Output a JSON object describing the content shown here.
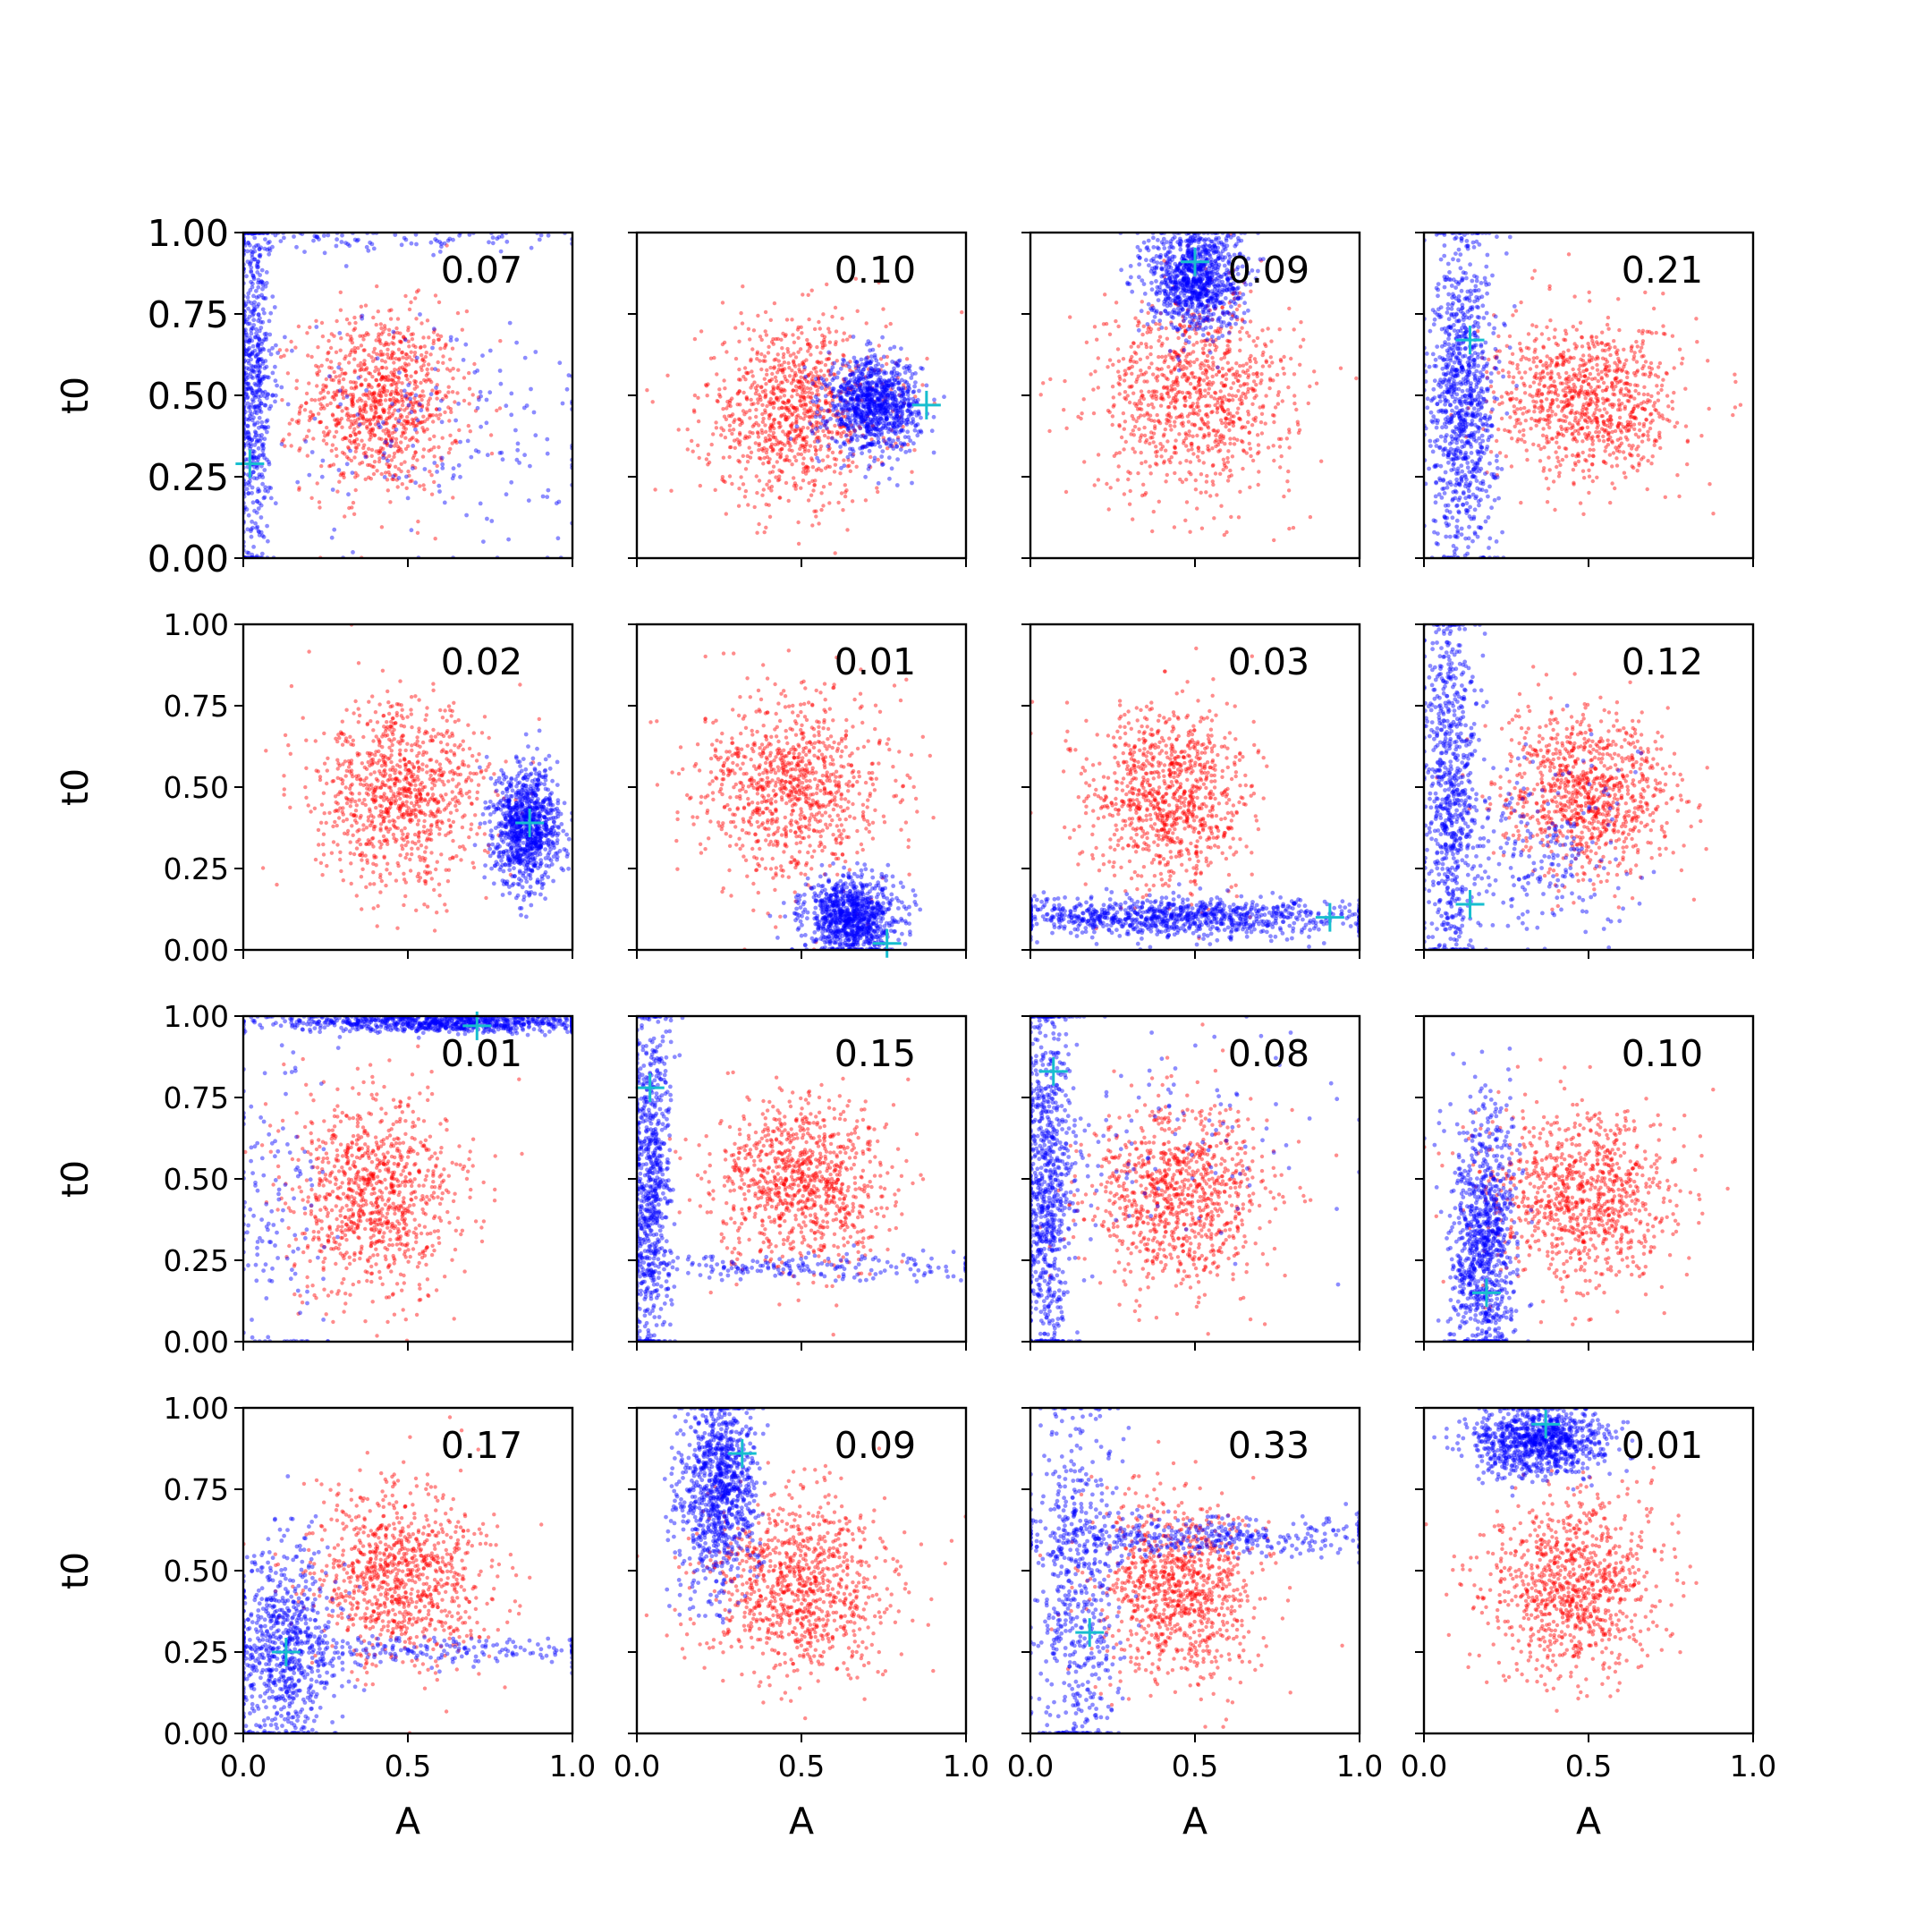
{
  "figure": {
    "rows": 4,
    "cols": 4,
    "colors": {
      "prior": "#ff0000",
      "posterior": "#0000ff",
      "true_value": "#17becf",
      "axes": "#000000"
    },
    "x_axis": {
      "label": "A",
      "range": [
        0,
        1
      ],
      "ticks": [
        0.0,
        0.5,
        1.0
      ],
      "tick_labels": [
        "0.0",
        "0.5",
        "1.0"
      ]
    },
    "y_axis": {
      "label": "t0",
      "range": [
        0,
        1
      ],
      "ticks": [
        0.0,
        0.25,
        0.5,
        0.75,
        1.0
      ],
      "tick_labels": [
        "0.00",
        "0.25",
        "0.50",
        "0.75",
        "1.00"
      ]
    }
  },
  "chart_data": [
    {
      "type": "scatter",
      "annotation": "0.07",
      "true_value": {
        "x": 0.02,
        "y": 0.29
      },
      "prior": {
        "center": [
          0.42,
          0.48
        ],
        "spread": [
          0.12,
          0.14
        ]
      },
      "posterior": [
        {
          "center": [
            0.03,
            0.55
          ],
          "spread": [
            0.03,
            0.3
          ],
          "weight": 0.7
        },
        {
          "center": [
            0.4,
            0.98
          ],
          "spread": [
            0.3,
            0.02
          ],
          "weight": 0.1
        },
        {
          "center": [
            0.6,
            0.4
          ],
          "spread": [
            0.25,
            0.2
          ],
          "weight": 0.2
        }
      ]
    },
    {
      "type": "scatter",
      "annotation": "0.10",
      "true_value": {
        "x": 0.88,
        "y": 0.47
      },
      "prior": {
        "center": [
          0.48,
          0.45
        ],
        "spread": [
          0.14,
          0.14
        ]
      },
      "posterior": [
        {
          "center": [
            0.72,
            0.47
          ],
          "spread": [
            0.07,
            0.07
          ],
          "weight": 1.0
        }
      ]
    },
    {
      "type": "scatter",
      "annotation": "0.09",
      "true_value": {
        "x": 0.5,
        "y": 0.91
      },
      "prior": {
        "center": [
          0.5,
          0.5
        ],
        "spread": [
          0.15,
          0.15
        ]
      },
      "posterior": [
        {
          "center": [
            0.5,
            0.86
          ],
          "spread": [
            0.07,
            0.08
          ],
          "weight": 1.0
        }
      ]
    },
    {
      "type": "scatter",
      "annotation": "0.21",
      "true_value": {
        "x": 0.14,
        "y": 0.67
      },
      "prior": {
        "center": [
          0.5,
          0.48
        ],
        "spread": [
          0.14,
          0.12
        ]
      },
      "posterior": [
        {
          "center": [
            0.12,
            0.5
          ],
          "spread": [
            0.05,
            0.25
          ],
          "weight": 1.0
        }
      ]
    },
    {
      "type": "scatter",
      "annotation": "0.02",
      "true_value": {
        "x": 0.87,
        "y": 0.39
      },
      "prior": {
        "center": [
          0.48,
          0.47
        ],
        "spread": [
          0.13,
          0.14
        ]
      },
      "posterior": [
        {
          "center": [
            0.86,
            0.38
          ],
          "spread": [
            0.05,
            0.09
          ],
          "weight": 1.0
        }
      ]
    },
    {
      "type": "scatter",
      "annotation": "0.01",
      "true_value": {
        "x": 0.76,
        "y": 0.02
      },
      "prior": {
        "center": [
          0.48,
          0.5
        ],
        "spread": [
          0.14,
          0.14
        ]
      },
      "posterior": [
        {
          "center": [
            0.65,
            0.1
          ],
          "spread": [
            0.07,
            0.06
          ],
          "weight": 1.0
        }
      ]
    },
    {
      "type": "scatter",
      "annotation": "0.03",
      "true_value": {
        "x": 0.91,
        "y": 0.1
      },
      "prior": {
        "center": [
          0.42,
          0.47
        ],
        "spread": [
          0.12,
          0.14
        ]
      },
      "posterior": [
        {
          "center": [
            0.45,
            0.1
          ],
          "spread": [
            0.3,
            0.03
          ],
          "weight": 1.0
        }
      ]
    },
    {
      "type": "scatter",
      "annotation": "0.12",
      "true_value": {
        "x": 0.14,
        "y": 0.14
      },
      "prior": {
        "center": [
          0.5,
          0.48
        ],
        "spread": [
          0.13,
          0.12
        ]
      },
      "posterior": [
        {
          "center": [
            0.08,
            0.5
          ],
          "spread": [
            0.04,
            0.28
          ],
          "weight": 0.75
        },
        {
          "center": [
            0.35,
            0.3
          ],
          "spread": [
            0.15,
            0.15
          ],
          "weight": 0.25
        }
      ]
    },
    {
      "type": "scatter",
      "annotation": "0.01",
      "true_value": {
        "x": 0.71,
        "y": 0.97
      },
      "prior": {
        "center": [
          0.4,
          0.45
        ],
        "spread": [
          0.13,
          0.15
        ]
      },
      "posterior": [
        {
          "center": [
            0.6,
            0.98
          ],
          "spread": [
            0.25,
            0.015
          ],
          "weight": 0.85
        },
        {
          "center": [
            0.1,
            0.4
          ],
          "spread": [
            0.08,
            0.3
          ],
          "weight": 0.15
        }
      ]
    },
    {
      "type": "scatter",
      "annotation": "0.15",
      "true_value": {
        "x": 0.04,
        "y": 0.78
      },
      "prior": {
        "center": [
          0.5,
          0.48
        ],
        "spread": [
          0.13,
          0.13
        ]
      },
      "posterior": [
        {
          "center": [
            0.04,
            0.45
          ],
          "spread": [
            0.03,
            0.3
          ],
          "weight": 0.8
        },
        {
          "center": [
            0.5,
            0.23
          ],
          "spread": [
            0.3,
            0.02
          ],
          "weight": 0.2
        }
      ]
    },
    {
      "type": "scatter",
      "annotation": "0.08",
      "true_value": {
        "x": 0.07,
        "y": 0.83
      },
      "prior": {
        "center": [
          0.45,
          0.45
        ],
        "spread": [
          0.13,
          0.14
        ]
      },
      "posterior": [
        {
          "center": [
            0.05,
            0.5
          ],
          "spread": [
            0.04,
            0.3
          ],
          "weight": 0.85
        },
        {
          "center": [
            0.4,
            0.6
          ],
          "spread": [
            0.3,
            0.2
          ],
          "weight": 0.15
        }
      ]
    },
    {
      "type": "scatter",
      "annotation": "0.10",
      "true_value": {
        "x": 0.19,
        "y": 0.15
      },
      "prior": {
        "center": [
          0.48,
          0.45
        ],
        "spread": [
          0.14,
          0.13
        ]
      },
      "posterior": [
        {
          "center": [
            0.18,
            0.3
          ],
          "spread": [
            0.05,
            0.2
          ],
          "weight": 1.0
        }
      ]
    },
    {
      "type": "scatter",
      "annotation": "0.17",
      "true_value": {
        "x": 0.13,
        "y": 0.25
      },
      "prior": {
        "center": [
          0.48,
          0.48
        ],
        "spread": [
          0.13,
          0.14
        ]
      },
      "posterior": [
        {
          "center": [
            0.12,
            0.25
          ],
          "spread": [
            0.08,
            0.15
          ],
          "weight": 0.8
        },
        {
          "center": [
            0.6,
            0.25
          ],
          "spread": [
            0.3,
            0.02
          ],
          "weight": 0.2
        }
      ]
    },
    {
      "type": "scatter",
      "annotation": "0.09",
      "true_value": {
        "x": 0.32,
        "y": 0.86
      },
      "prior": {
        "center": [
          0.5,
          0.45
        ],
        "spread": [
          0.14,
          0.14
        ]
      },
      "posterior": [
        {
          "center": [
            0.25,
            0.75
          ],
          "spread": [
            0.06,
            0.15
          ],
          "weight": 1.0
        }
      ]
    },
    {
      "type": "scatter",
      "annotation": "0.33",
      "true_value": {
        "x": 0.18,
        "y": 0.31
      },
      "prior": {
        "center": [
          0.45,
          0.45
        ],
        "spread": [
          0.12,
          0.14
        ]
      },
      "posterior": [
        {
          "center": [
            0.15,
            0.45
          ],
          "spread": [
            0.07,
            0.3
          ],
          "weight": 0.6
        },
        {
          "center": [
            0.5,
            0.6
          ],
          "spread": [
            0.3,
            0.03
          ],
          "weight": 0.4
        }
      ]
    },
    {
      "type": "scatter",
      "annotation": "0.01",
      "true_value": {
        "x": 0.37,
        "y": 0.95
      },
      "prior": {
        "center": [
          0.45,
          0.45
        ],
        "spread": [
          0.13,
          0.14
        ]
      },
      "posterior": [
        {
          "center": [
            0.35,
            0.9
          ],
          "spread": [
            0.1,
            0.05
          ],
          "weight": 1.0
        }
      ]
    }
  ]
}
